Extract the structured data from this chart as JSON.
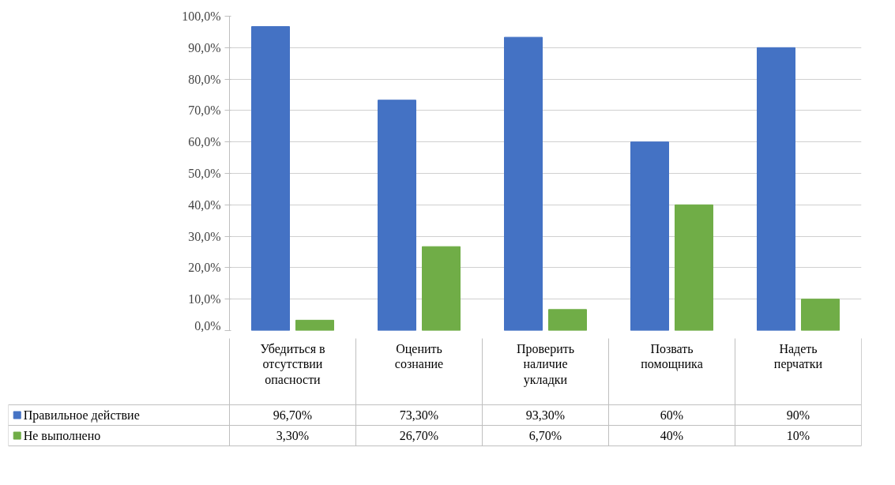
{
  "chart_data": {
    "type": "bar",
    "categories": [
      "Убедиться в отсутствии опасности",
      "Оценить сознание",
      "Проверить наличие укладки",
      "Позвать помощника",
      "Надеть перчатки"
    ],
    "series": [
      {
        "name": "Правильное действие",
        "color": "#4472c4",
        "values": [
          96.7,
          73.3,
          93.3,
          60,
          90
        ],
        "value_labels": [
          "96,70%",
          "73,30%",
          "93,30%",
          "60%",
          "90%"
        ]
      },
      {
        "name": "Не выполнено",
        "color": "#70ad47",
        "values": [
          3.3,
          26.7,
          6.7,
          40,
          10
        ],
        "value_labels": [
          "3,30%",
          "26,70%",
          "6,70%",
          "40%",
          "10%"
        ]
      }
    ],
    "ylim": [
      0,
      100
    ],
    "yticks": [
      {
        "value": 0,
        "label": "0,0%"
      },
      {
        "value": 10,
        "label": "10,0%"
      },
      {
        "value": 20,
        "label": "20,0%"
      },
      {
        "value": 30,
        "label": "30,0%"
      },
      {
        "value": 40,
        "label": "40,0%"
      },
      {
        "value": 50,
        "label": "50,0%"
      },
      {
        "value": 60,
        "label": "60,0%"
      },
      {
        "value": 70,
        "label": "70,0%"
      },
      {
        "value": 80,
        "label": "80,0%"
      },
      {
        "value": 90,
        "label": "90,0%"
      },
      {
        "value": 100,
        "label": "100,0%"
      }
    ],
    "grid": "y",
    "legend": "bottom"
  }
}
